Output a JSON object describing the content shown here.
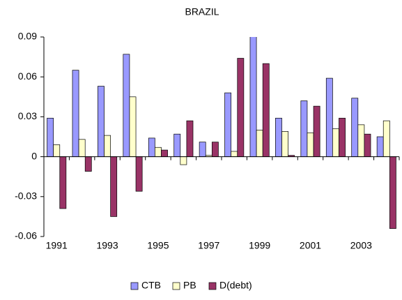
{
  "chart_data": {
    "type": "bar",
    "title": "BRAZIL",
    "categories": [
      "1991",
      null,
      "1993",
      null,
      "1995",
      null,
      "1997",
      null,
      "1999",
      null,
      "2001",
      null,
      "2003",
      null
    ],
    "series": [
      {
        "name": "CTB",
        "color": "#9999ff",
        "values": [
          0.029,
          0.065,
          0.053,
          0.077,
          0.014,
          0.017,
          0.011,
          0.048,
          0.093,
          0.029,
          0.042,
          0.059,
          0.044,
          0.015
        ]
      },
      {
        "name": "PB",
        "color": "#ffffcc",
        "values": [
          0.009,
          0.013,
          0.016,
          0.045,
          0.007,
          -0.006,
          0.001,
          0.004,
          0.02,
          0.019,
          0.018,
          0.021,
          0.024,
          0.027
        ]
      },
      {
        "name": "D(debt)",
        "color": "#993366",
        "values": [
          -0.039,
          -0.011,
          -0.045,
          -0.026,
          0.005,
          0.027,
          0.011,
          0.074,
          0.07,
          0.001,
          0.038,
          0.029,
          0.017,
          -0.054
        ]
      }
    ],
    "ylim": [
      -0.06,
      0.09
    ],
    "yticks": [
      -0.06,
      -0.03,
      0,
      0.03,
      0.06,
      0.09
    ],
    "legend": "bottom"
  }
}
